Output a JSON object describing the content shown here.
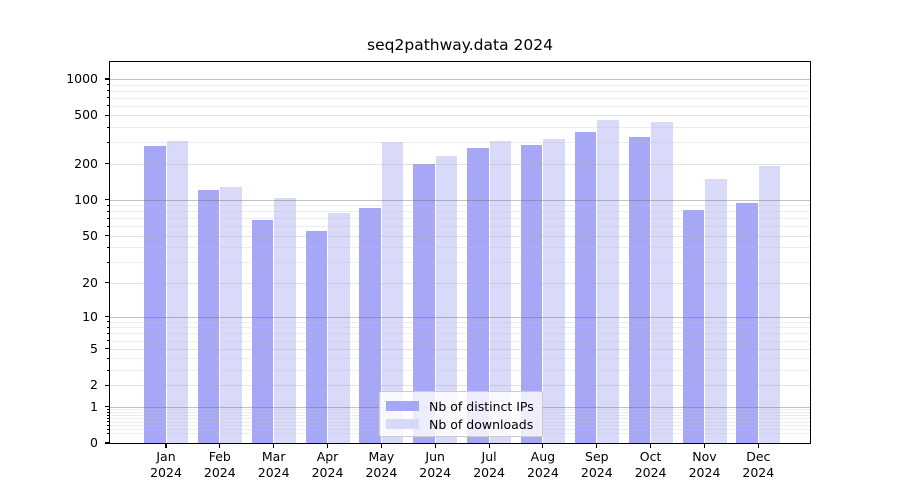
{
  "chart_data": {
    "type": "bar",
    "title": "seq2pathway.data 2024",
    "categories": [
      "Jan",
      "Feb",
      "Mar",
      "Apr",
      "May",
      "Jun",
      "Jul",
      "Aug",
      "Sep",
      "Oct",
      "Nov",
      "Dec"
    ],
    "category_sublabel": "2024",
    "series": [
      {
        "name": "Nb of distinct IPs",
        "color": "#a7a7f7",
        "values": [
          280,
          120,
          68,
          55,
          85,
          200,
          270,
          285,
          365,
          335,
          83,
          95
        ]
      },
      {
        "name": "Nb of downloads",
        "color": "#d9d9f9",
        "values": [
          310,
          128,
          103,
          78,
          300,
          230,
          305,
          320,
          460,
          440,
          148,
          190
        ]
      }
    ],
    "yscale": "log10(value+1)",
    "y_ticks": [
      0,
      1,
      2,
      5,
      10,
      20,
      50,
      100,
      200,
      500,
      1000
    ],
    "ylim": [
      0,
      1380
    ],
    "grid": true,
    "legend_position": "bottom-center",
    "colors": {
      "axis": "#000000",
      "grid_decade": "#a8a8a8",
      "grid_minor": "#e8e8e8",
      "background": "#ffffff"
    }
  }
}
